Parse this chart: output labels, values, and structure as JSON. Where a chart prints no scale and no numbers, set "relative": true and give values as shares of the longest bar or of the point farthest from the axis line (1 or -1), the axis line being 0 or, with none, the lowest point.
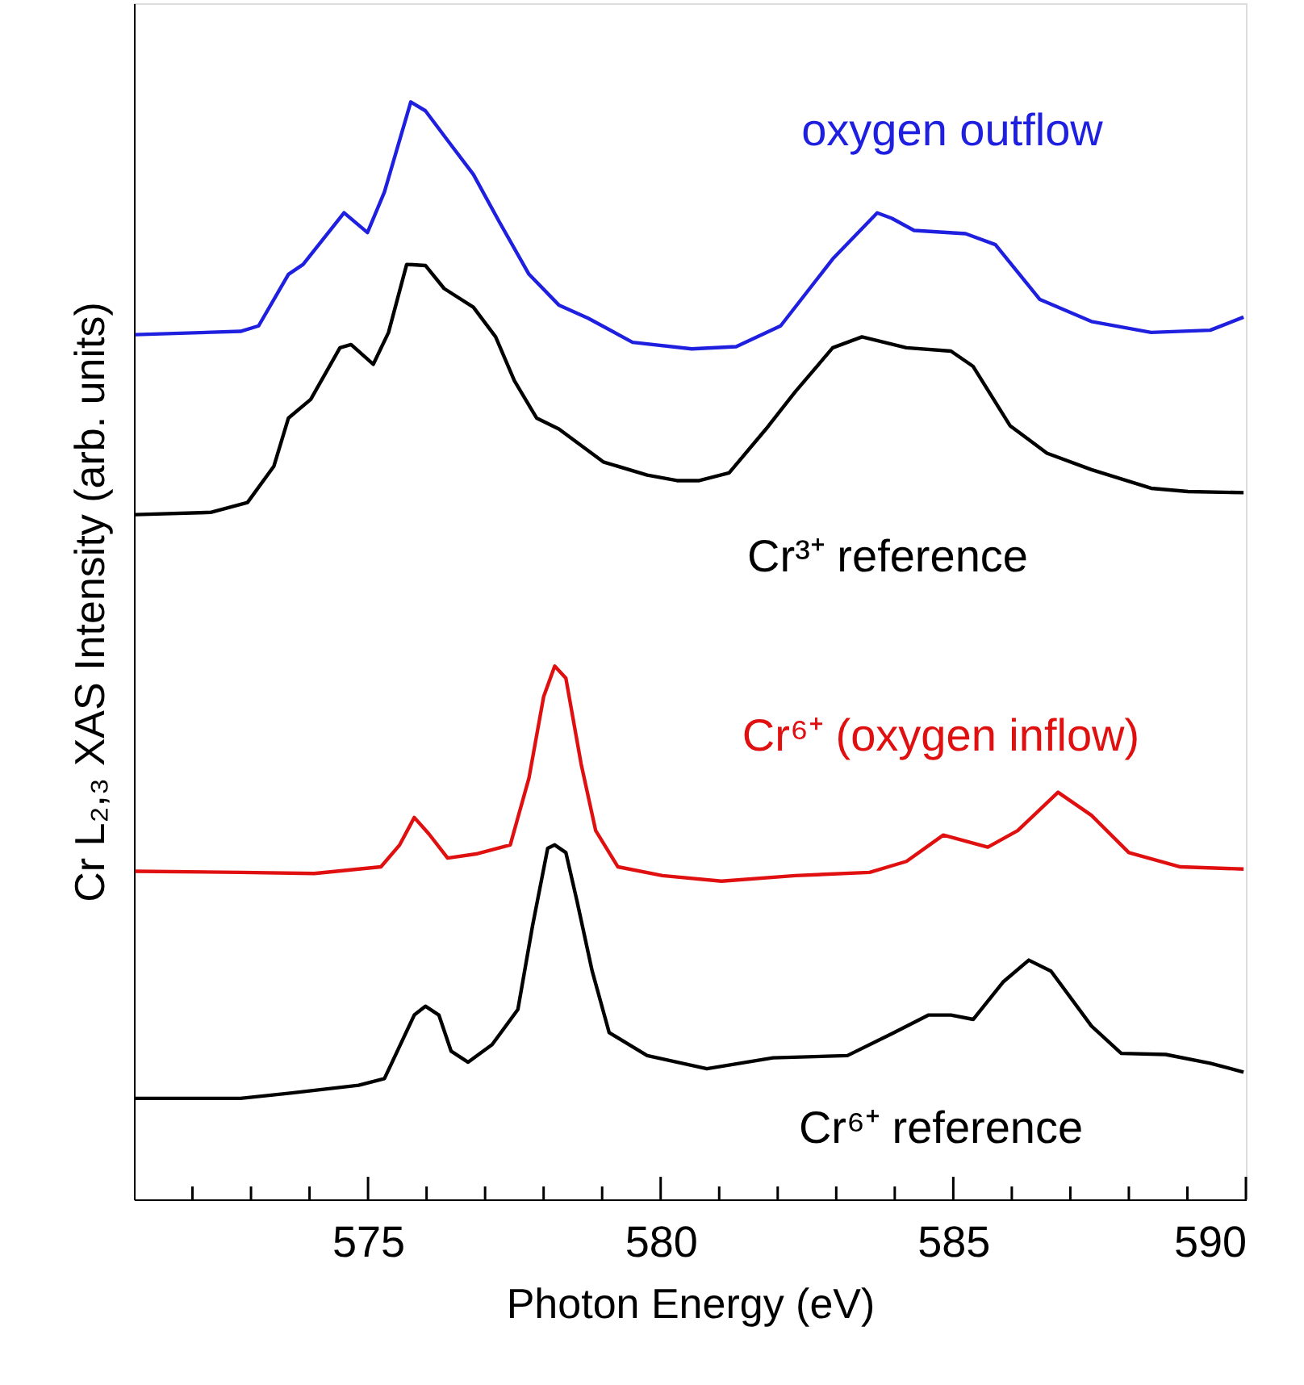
{
  "chart_data": {
    "type": "line",
    "relative": true,
    "xlabel": "Photon Energy (eV)",
    "ylabel": "Cr L₂,₃ XAS Intensity (arb. units)",
    "xlim": [
      571,
      590
    ],
    "xticks": [
      {
        "value": 572,
        "label": null
      },
      {
        "value": 573,
        "label": null
      },
      {
        "value": 574,
        "label": null
      },
      575,
      {
        "value": 576,
        "label": null
      },
      {
        "value": 577,
        "label": null
      },
      {
        "value": 578,
        "label": null
      },
      {
        "value": 579,
        "label": null
      },
      580,
      {
        "value": 581,
        "label": null
      },
      {
        "value": 582,
        "label": null
      },
      {
        "value": 583,
        "label": null
      },
      {
        "value": 584,
        "label": null
      },
      585,
      {
        "value": 586,
        "label": null
      },
      {
        "value": 587,
        "label": null
      },
      {
        "value": 588,
        "label": null
      },
      {
        "value": 589,
        "label": null
      },
      590
    ],
    "grid": false,
    "marker": "none",
    "line_style": "solid",
    "series": [
      {
        "name": "oxygen outflow",
        "color": "#1f1fe0",
        "x": [
          571.02,
          572.82,
          573.13,
          573.64,
          573.89,
          574.59,
          574.99,
          575.28,
          575.73,
          575.98,
          576.36,
          576.8,
          577.24,
          577.75,
          578.26,
          578.76,
          579.52,
          580.53,
          581.29,
          582.05,
          582.94,
          583.7,
          583.95,
          584.33,
          585.21,
          585.72,
          586.48,
          587.36,
          588.38,
          589.39,
          589.96
        ],
        "values": [
          0.788,
          0.791,
          0.796,
          0.843,
          0.852,
          0.899,
          0.881,
          0.918,
          1.0,
          0.992,
          0.965,
          0.934,
          0.891,
          0.843,
          0.815,
          0.803,
          0.781,
          0.775,
          0.777,
          0.796,
          0.857,
          0.899,
          0.894,
          0.883,
          0.88,
          0.87,
          0.82,
          0.8,
          0.79,
          0.792,
          0.804
        ]
      },
      {
        "name": "Cr³⁺ reference",
        "color": "#000000",
        "x": [
          571.02,
          572.31,
          572.94,
          573.39,
          573.64,
          574.02,
          574.52,
          574.71,
          575.09,
          575.35,
          575.66,
          575.98,
          576.3,
          576.8,
          577.18,
          577.5,
          577.88,
          578.26,
          579.02,
          579.77,
          580.28,
          580.66,
          581.17,
          581.8,
          582.3,
          582.94,
          583.44,
          584.2,
          584.96,
          585.34,
          585.97,
          586.6,
          587.36,
          588.38,
          589.01,
          589.96
        ],
        "values": [
          0.624,
          0.626,
          0.635,
          0.668,
          0.712,
          0.729,
          0.776,
          0.779,
          0.761,
          0.79,
          0.852,
          0.851,
          0.83,
          0.813,
          0.786,
          0.746,
          0.712,
          0.702,
          0.672,
          0.66,
          0.655,
          0.655,
          0.662,
          0.702,
          0.736,
          0.776,
          0.786,
          0.776,
          0.773,
          0.759,
          0.705,
          0.68,
          0.665,
          0.648,
          0.645,
          0.644
        ]
      },
      {
        "name": "Cr⁶⁺ (oxygen inflow)",
        "color": "#e01010",
        "x": [
          571.02,
          572.82,
          574.08,
          575.22,
          575.54,
          575.79,
          576.04,
          576.36,
          576.87,
          577.43,
          577.75,
          578.0,
          578.19,
          578.38,
          578.64,
          578.89,
          579.27,
          580.03,
          581.04,
          582.3,
          583.57,
          584.2,
          584.83,
          585.59,
          586.1,
          586.79,
          587.36,
          588.0,
          588.88,
          589.96
        ],
        "values": [
          0.299,
          0.298,
          0.297,
          0.303,
          0.323,
          0.348,
          0.333,
          0.311,
          0.315,
          0.323,
          0.384,
          0.458,
          0.486,
          0.475,
          0.397,
          0.336,
          0.303,
          0.295,
          0.29,
          0.295,
          0.298,
          0.308,
          0.332,
          0.321,
          0.336,
          0.371,
          0.35,
          0.316,
          0.303,
          0.301
        ]
      },
      {
        "name": "Cr⁶⁺ reference",
        "color": "#000000",
        "x": [
          571.02,
          572.82,
          573.7,
          574.84,
          575.28,
          575.79,
          575.98,
          576.21,
          576.42,
          576.71,
          577.12,
          577.56,
          577.81,
          578.07,
          578.19,
          578.38,
          578.57,
          578.83,
          579.12,
          579.77,
          580.79,
          581.92,
          583.19,
          583.95,
          584.58,
          584.96,
          585.34,
          585.85,
          586.29,
          586.67,
          587.36,
          587.87,
          588.63,
          589.39,
          589.96
        ],
        "values": [
          0.092,
          0.092,
          0.097,
          0.104,
          0.11,
          0.168,
          0.176,
          0.168,
          0.135,
          0.125,
          0.141,
          0.173,
          0.249,
          0.32,
          0.323,
          0.316,
          0.272,
          0.208,
          0.152,
          0.131,
          0.119,
          0.129,
          0.131,
          0.151,
          0.168,
          0.168,
          0.164,
          0.198,
          0.218,
          0.208,
          0.158,
          0.133,
          0.132,
          0.124,
          0.116
        ]
      }
    ]
  }
}
